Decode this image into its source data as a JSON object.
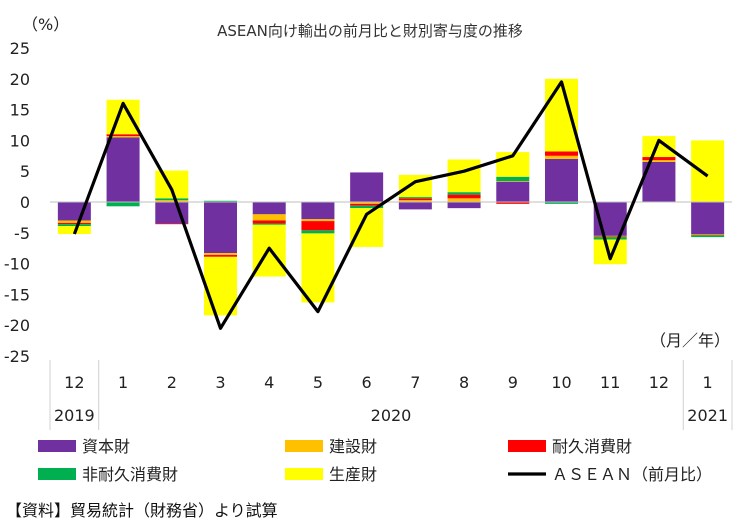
{
  "chart_data": {
    "type": "bar",
    "title": "ASEAN向け輸出の前月比と財別寄与度の推移",
    "ylabel": "（%）",
    "xlabel": "（月／年）",
    "ylim": [
      -25,
      25
    ],
    "yticks": [
      25,
      20,
      15,
      10,
      5,
      0,
      -5,
      -10,
      -15,
      -20,
      -25
    ],
    "categories": [
      "12",
      "1",
      "2",
      "3",
      "4",
      "5",
      "6",
      "7",
      "8",
      "9",
      "10",
      "11",
      "12",
      "1"
    ],
    "year_groups": [
      {
        "label": "2019",
        "start": 0,
        "end": 0
      },
      {
        "label": "2020",
        "start": 1,
        "end": 12
      },
      {
        "label": "2021",
        "start": 13,
        "end": 13
      }
    ],
    "series": [
      {
        "name": "資本財",
        "kind": "bar",
        "color": "#7030A0",
        "values": [
          -3.0,
          10.5,
          -3.5,
          -8.3,
          -2.0,
          -2.8,
          4.8,
          -1.2,
          -1.0,
          3.3,
          7.0,
          -5.5,
          6.5,
          -5.2
        ]
      },
      {
        "name": "建設財",
        "kind": "bar",
        "color": "#FFC000",
        "values": [
          -0.4,
          0.2,
          0.3,
          -0.3,
          -1.0,
          -0.3,
          -0.3,
          0.3,
          0.6,
          0.1,
          0.5,
          -0.1,
          0.3,
          -0.1
        ]
      },
      {
        "name": "耐久消費財",
        "kind": "bar",
        "color": "#FF0000",
        "values": [
          -0.2,
          0.3,
          -0.1,
          -0.3,
          -0.5,
          -1.5,
          -0.3,
          0.3,
          0.6,
          -0.3,
          0.7,
          -0.1,
          0.5,
          -0.1
        ]
      },
      {
        "name": "非耐久消費財",
        "kind": "bar",
        "color": "#00B050",
        "values": [
          -0.3,
          -0.7,
          0.3,
          0.2,
          -0.2,
          -0.5,
          -0.4,
          0.2,
          0.4,
          0.7,
          -0.3,
          -0.4,
          0.0,
          -0.3
        ]
      },
      {
        "name": "生産財",
        "kind": "bar",
        "color": "#FFFF00",
        "values": [
          -1.3,
          5.6,
          4.5,
          -9.5,
          -8.4,
          -11.2,
          -6.3,
          3.6,
          5.3,
          4.0,
          11.8,
          -4.0,
          3.4,
          10.0
        ]
      },
      {
        "name": "ＡＳＥＡＮ（前月比）",
        "kind": "line",
        "color": "#000000",
        "values": [
          -5.2,
          16.0,
          2.0,
          -20.5,
          -7.5,
          -17.8,
          -2.0,
          3.3,
          5.0,
          7.5,
          19.5,
          -9.2,
          10.0,
          4.2
        ]
      }
    ],
    "legend_position": "bottom",
    "grid": false
  },
  "source_note": "【資料】貿易統計（財務省）より試算"
}
